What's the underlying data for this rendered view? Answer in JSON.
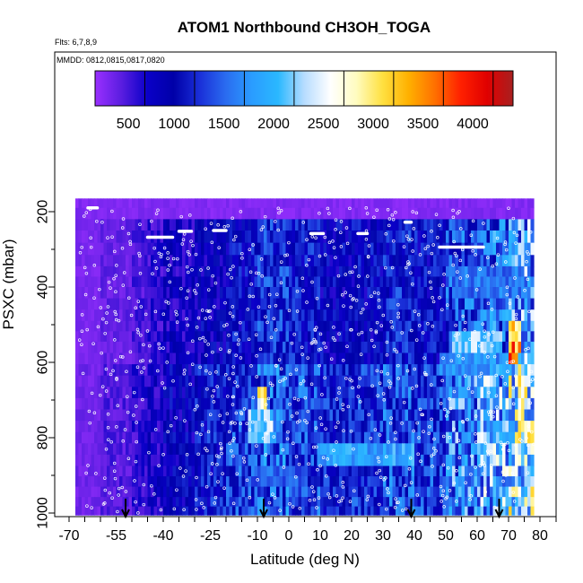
{
  "chart_data": {
    "type": "heatmap",
    "title": "ATOM1 Northbound CH3OH_TOGA",
    "subtitle_flights": "Flts: 6,7,8,9",
    "subtitle_dates": "MMDD: 0812,0815,0817,0820",
    "xlabel": "Latitude (deg N)",
    "ylabel": "PSXC (mbar)",
    "xlim": [
      -70,
      80
    ],
    "ylim": [
      1000,
      150
    ],
    "x_ticks": [
      -70,
      -55,
      -40,
      -25,
      -10,
      0,
      10,
      20,
      30,
      40,
      50,
      60,
      70,
      80
    ],
    "y_ticks": [
      200,
      400,
      600,
      800,
      1000
    ],
    "colorbar": {
      "range": [
        0,
        4200
      ],
      "ticks": [
        500,
        1000,
        1500,
        2000,
        2500,
        3000,
        3500,
        4000
      ],
      "colors": [
        "#9a30ff",
        "#5a1de0",
        "#0a00c8",
        "#0000a8",
        "#1a2fd8",
        "#2a6cf0",
        "#2a9cff",
        "#2ab8ff",
        "#b6dcff",
        "#ffffff",
        "#fffcc0",
        "#ffe040",
        "#ffb000",
        "#ff7000",
        "#ff2000",
        "#e00000",
        "#a82020"
      ]
    },
    "arrows_latitude": [
      -52,
      -8,
      39,
      67
    ],
    "pressure_levels": [
      175,
      205,
      235,
      265,
      300,
      330,
      360,
      385,
      415,
      445,
      475,
      505,
      530,
      560,
      590,
      620,
      650,
      680,
      710,
      740,
      770,
      800,
      830,
      860,
      890,
      915,
      945,
      970,
      995
    ],
    "lat_bands": [
      {
        "lat": [
          -70,
          -60
        ],
        "value": 150
      },
      {
        "lat": [
          -60,
          -50
        ],
        "value": 250
      },
      {
        "lat": [
          -50,
          -45
        ],
        "value": 350
      },
      {
        "lat": [
          -45,
          -40
        ],
        "value": 450
      },
      {
        "lat": [
          -40,
          -30
        ],
        "value": 600
      },
      {
        "lat": [
          -30,
          -20
        ],
        "value": 750
      },
      {
        "lat": [
          -20,
          -10
        ],
        "value": 900
      },
      {
        "lat": [
          -10,
          0
        ],
        "value": 1100
      },
      {
        "lat": [
          0,
          10
        ],
        "value": 950
      },
      {
        "lat": [
          10,
          20
        ],
        "value": 800
      },
      {
        "lat": [
          20,
          30
        ],
        "value": 850
      },
      {
        "lat": [
          30,
          40
        ],
        "value": 1000
      },
      {
        "lat": [
          40,
          50
        ],
        "value": 900
      },
      {
        "lat": [
          50,
          60
        ],
        "value": 1300
      },
      {
        "lat": [
          60,
          70
        ],
        "value": 1500
      },
      {
        "lat": [
          70,
          80
        ],
        "value": 1800
      }
    ],
    "hotspots": [
      {
        "lat": [
          -10,
          -7
        ],
        "p": [
          680,
          760
        ],
        "value": 2700
      },
      {
        "lat": [
          -13,
          -5
        ],
        "p": [
          740,
          800
        ],
        "value": 2100
      },
      {
        "lat": [
          70,
          74
        ],
        "p": [
          480,
          560
        ],
        "value": 3000
      },
      {
        "lat": [
          70,
          73
        ],
        "p": [
          560,
          600
        ],
        "value": 3400
      },
      {
        "lat": [
          73,
          76
        ],
        "p": [
          640,
          720
        ],
        "value": 2600
      },
      {
        "lat": [
          52,
          68
        ],
        "p": [
          510,
          560
        ],
        "value": 2000
      },
      {
        "lat": [
          10,
          40
        ],
        "p": [
          820,
          880
        ],
        "value": 1700
      },
      {
        "lat": [
          65,
          72
        ],
        "p": [
          760,
          810
        ],
        "value": 1900
      },
      {
        "lat": [
          48,
          66
        ],
        "p": [
          590,
          630
        ],
        "value": 1600
      },
      {
        "lat": [
          55,
          75
        ],
        "p": [
          350,
          440
        ],
        "value": 1400
      },
      {
        "lat": [
          -12,
          5
        ],
        "p": [
          880,
          930
        ],
        "value": 1300
      }
    ],
    "white_segments": [
      {
        "lat": [
          -45,
          -37
        ],
        "p": 268
      },
      {
        "lat": [
          -35,
          -31
        ],
        "p": 252
      },
      {
        "lat": [
          -24,
          -20
        ],
        "p": 250
      },
      {
        "lat": [
          7,
          11
        ],
        "p": 258
      },
      {
        "lat": [
          22,
          25
        ],
        "p": 258
      },
      {
        "lat": [
          48,
          62
        ],
        "p": 294
      },
      {
        "lat": [
          37,
          39
        ],
        "p": 228
      },
      {
        "lat": [
          -64,
          -61
        ],
        "p": 190
      }
    ]
  }
}
